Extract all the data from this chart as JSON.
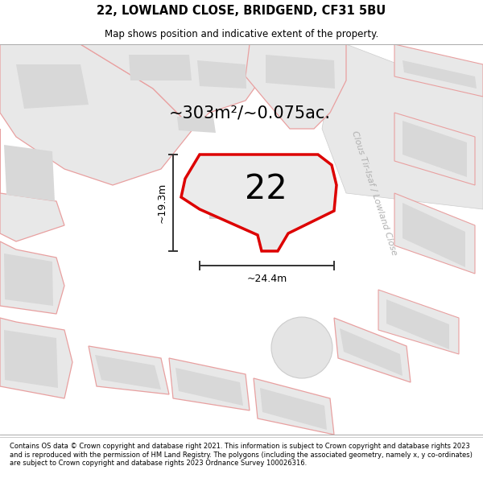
{
  "title_line1": "22, LOWLAND CLOSE, BRIDGEND, CF31 5BU",
  "title_line2": "Map shows position and indicative extent of the property.",
  "footer_text": "Contains OS data © Crown copyright and database right 2021. This information is subject to Crown copyright and database rights 2023 and is reproduced with the permission of HM Land Registry. The polygons (including the associated geometry, namely x, y co-ordinates) are subject to Crown copyright and database rights 2023 Ordnance Survey 100026316.",
  "area_text": "~303m²/~0.075ac.",
  "number_text": "22",
  "width_text": "~24.4m",
  "height_text": "~19.3m",
  "road_label": "Clous Tir-Isaf / Lowland Close",
  "bg_color": "#f8f8f8",
  "map_bg": "#f0f0f0",
  "property_stroke": "#dd0000",
  "outline_color": "#e8a0a0",
  "building_fill": "#d8d8d8",
  "plot_fill": "#e8e8e8",
  "road_fill": "#ebebeb",
  "title_fontsize": 10.5,
  "subtitle_fontsize": 8.5,
  "footer_fontsize": 6.0,
  "area_fontsize": 15,
  "number_fontsize": 30,
  "dim_fontsize": 9,
  "road_label_fontsize": 8
}
